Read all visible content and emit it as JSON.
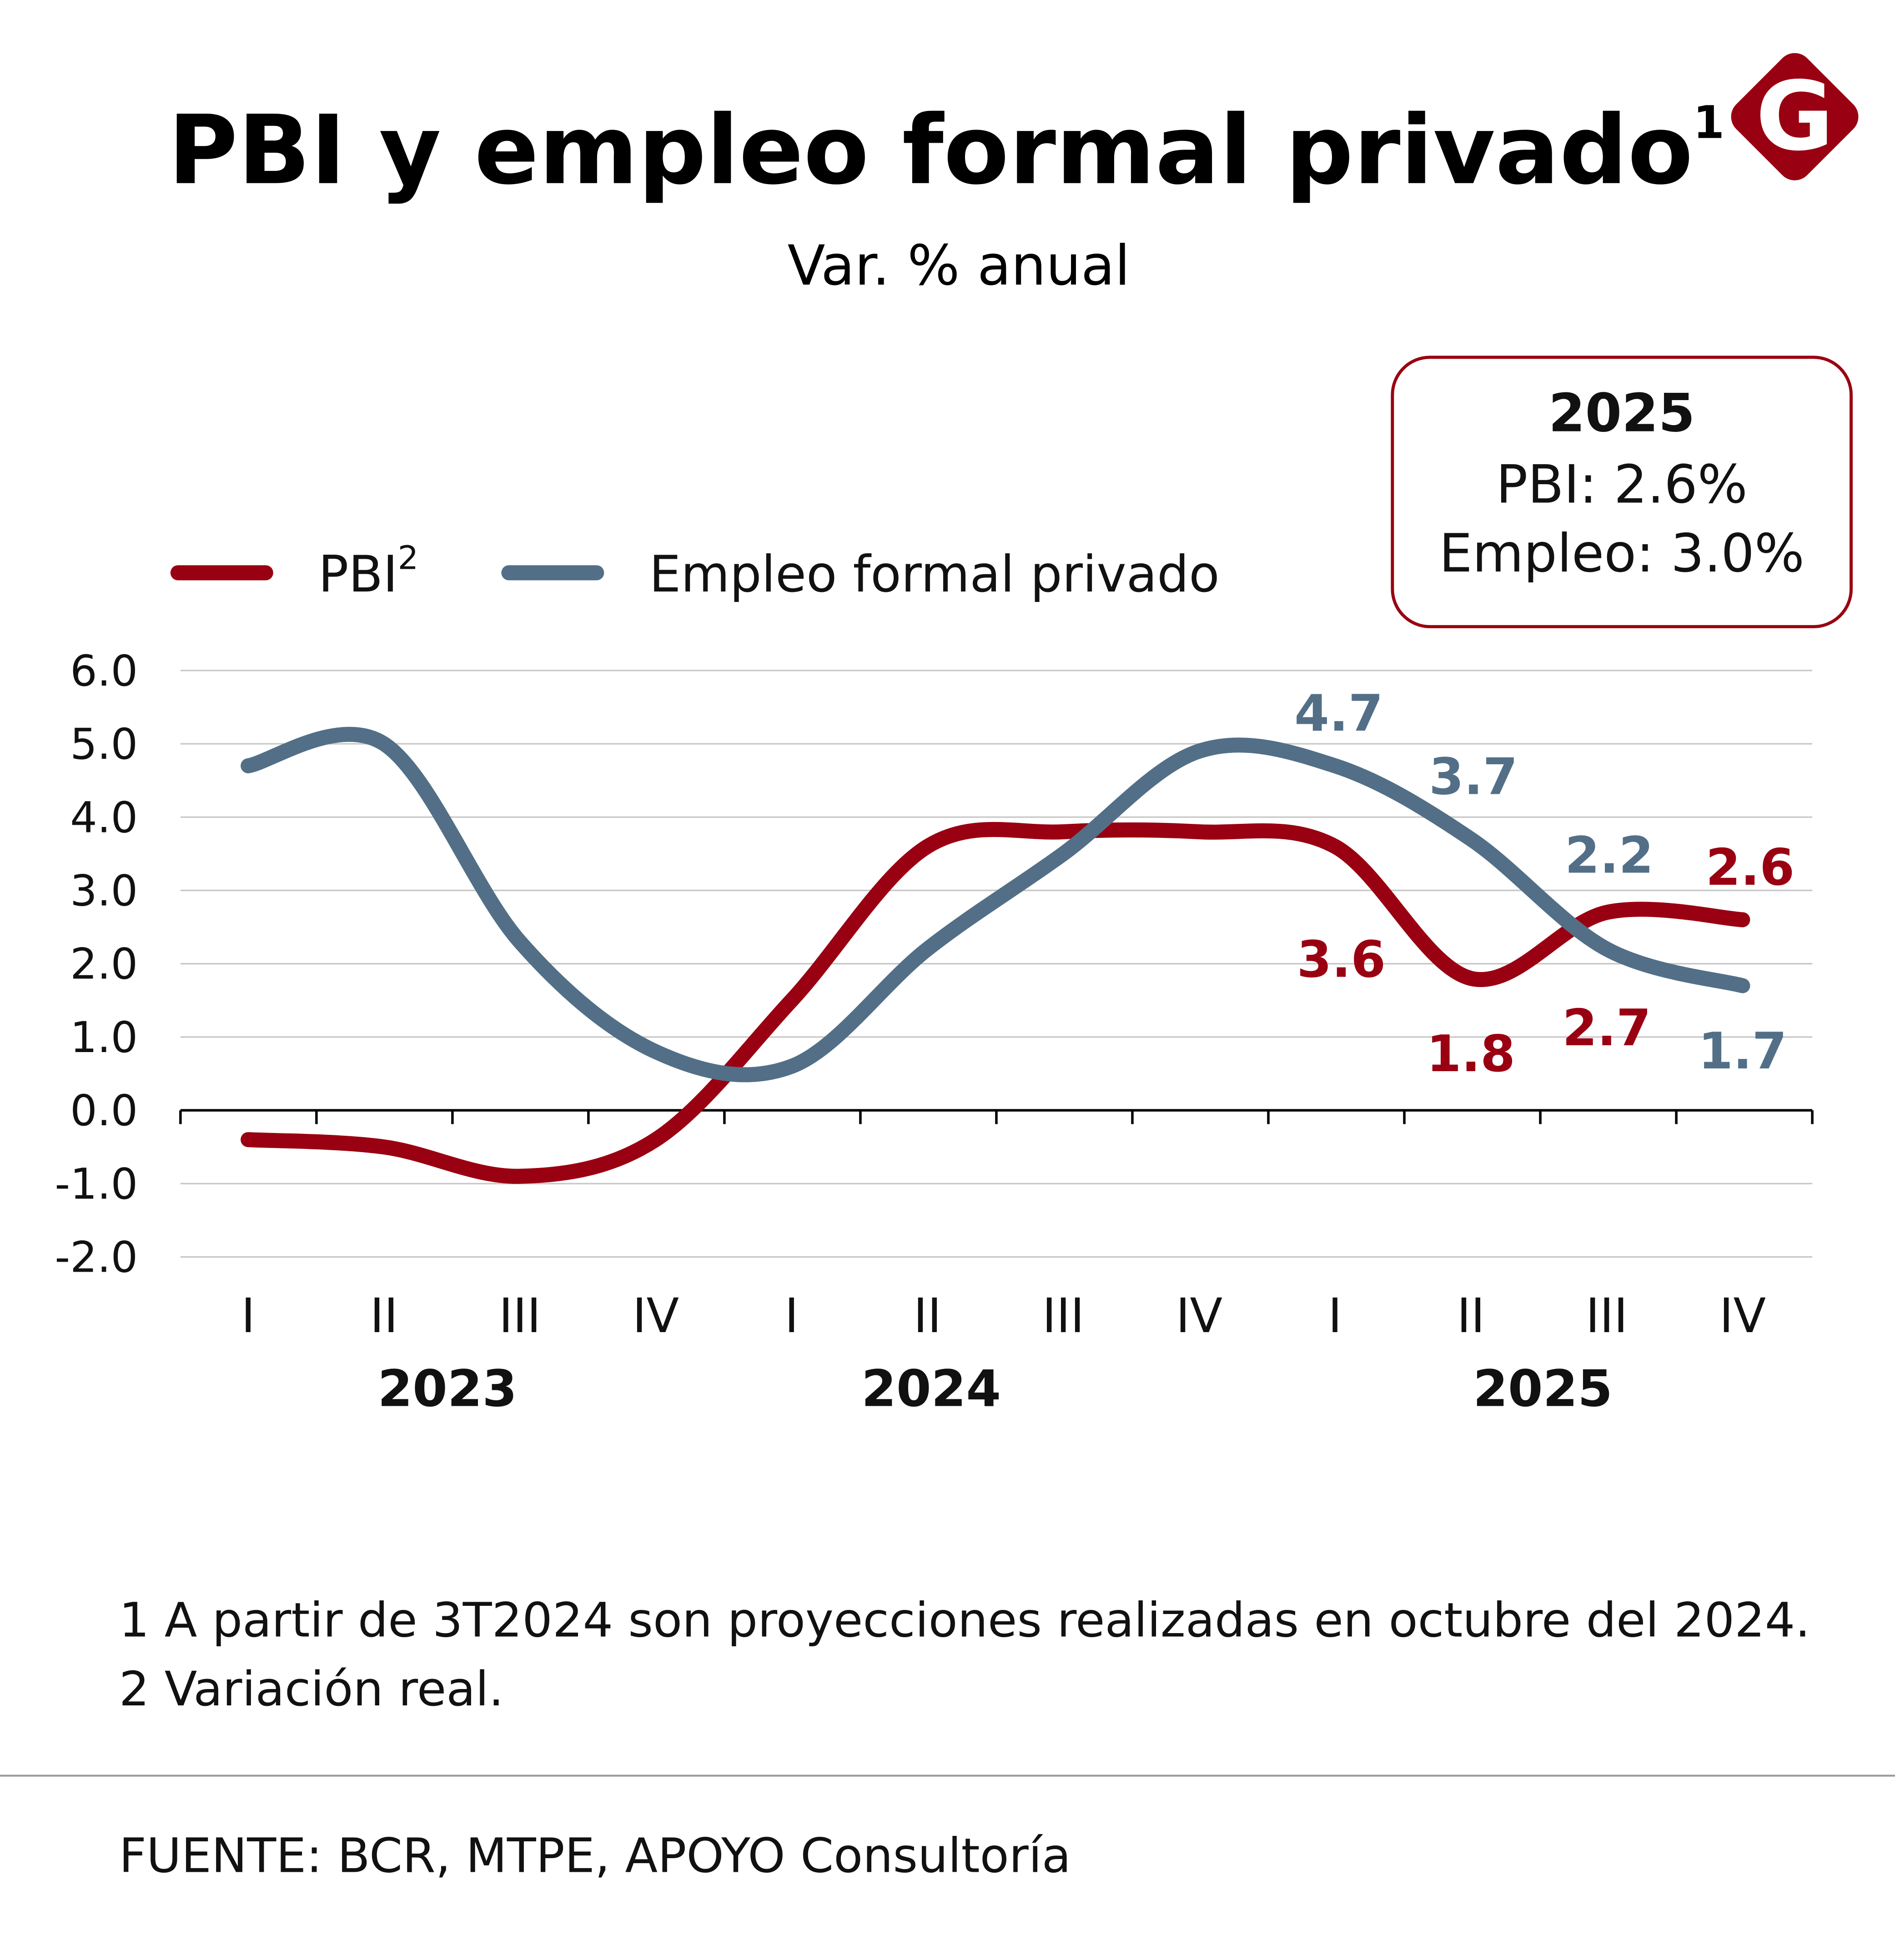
{
  "title": "PBI y empleo formal privado",
  "title_sup": "1",
  "subtitle": "Var. % anual",
  "logo": {
    "letter": "G",
    "color": "#990011"
  },
  "infobox": {
    "year": "2025",
    "line1": "PBI: 2.6%",
    "line2": "Empleo: 3.0%"
  },
  "legend": [
    {
      "label": "PBI",
      "sup": "2",
      "color": "#990011"
    },
    {
      "label": "Empleo formal privado",
      "color": "#526f87"
    }
  ],
  "chart_data": {
    "type": "line",
    "categories": [
      "I",
      "II",
      "III",
      "IV",
      "I",
      "II",
      "III",
      "IV",
      "I",
      "II",
      "III",
      "IV"
    ],
    "years": [
      {
        "label": "2023"
      },
      {
        "label": "2024"
      },
      {
        "label": "2025"
      }
    ],
    "ylim": [
      -2.0,
      6.0
    ],
    "yticks": [
      "6.0",
      "5.0",
      "4.0",
      "3.0",
      "2.0",
      "1.0",
      "0.0",
      "-1.0",
      "-2.0"
    ],
    "grid": true,
    "legend_position": "top-left",
    "series": [
      {
        "name": "PBI",
        "color": "#990011",
        "values": [
          -0.4,
          -0.5,
          -0.9,
          -0.4,
          1.5,
          3.6,
          3.8,
          3.8,
          3.6,
          1.8,
          2.7,
          2.6
        ],
        "labels": [
          null,
          null,
          null,
          null,
          null,
          null,
          null,
          null,
          "3.6",
          "1.8",
          "2.7",
          "2.6"
        ]
      },
      {
        "name": "Empleo formal privado",
        "color": "#526f87",
        "values": [
          4.7,
          5.0,
          2.3,
          0.8,
          0.6,
          2.2,
          3.5,
          4.9,
          4.7,
          3.7,
          2.2,
          1.7
        ],
        "labels": [
          null,
          null,
          null,
          null,
          null,
          null,
          null,
          null,
          "4.7",
          "3.7",
          "2.2",
          "1.7"
        ]
      }
    ]
  },
  "notes": [
    "1 A partir de 3T2024 son proyecciones realizadas en octubre del 2024.",
    "2 Variación real."
  ],
  "source": "FUENTE: BCR, MTPE, APOYO Consultoría"
}
